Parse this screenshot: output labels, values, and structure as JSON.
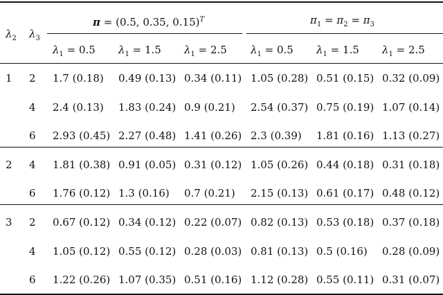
{
  "header": {
    "lambda2": "λ2",
    "lambda3": "λ3",
    "group_a": "π = (0.5, 0.35, 0.15)T",
    "group_b": "π1 = π2 = π3",
    "sub_cols": [
      "λ1 = 0.5",
      "λ1 = 1.5",
      "λ1 = 2.5",
      "λ1 = 0.5",
      "λ1 = 1.5",
      "λ1 = 2.5"
    ]
  },
  "blocks": [
    {
      "lambda2": "1",
      "rows": [
        {
          "lambda3": "2",
          "cells": [
            "1.7 (0.18)",
            "0.49 (0.13)",
            "0.34 (0.11)",
            "1.05 (0.28)",
            "0.51 (0.15)",
            "0.32 (0.09)"
          ]
        },
        {
          "lambda3": "4",
          "cells": [
            "2.4 (0.13)",
            "1.83 (0.24)",
            "0.9 (0.21)",
            "2.54 (0.37)",
            "0.75 (0.19)",
            "1.07 (0.14)"
          ]
        },
        {
          "lambda3": "6",
          "cells": [
            "2.93 (0.45)",
            "2.27 (0.48)",
            "1.41 (0.26)",
            "2.3 (0.39)",
            "1.81 (0.16)",
            "1.13 (0.27)"
          ]
        }
      ]
    },
    {
      "lambda2": "2",
      "rows": [
        {
          "lambda3": "4",
          "cells": [
            "1.81 (0.38)",
            "0.91 (0.05)",
            "0.31 (0.12)",
            "1.05 (0.26)",
            "0.44 (0.18)",
            "0.31 (0.18)"
          ]
        },
        {
          "lambda3": "6",
          "cells": [
            "1.76 (0.12)",
            "1.3 (0.16)",
            "0.7 (0.21)",
            "2.15 (0.13)",
            "0.61 (0.17)",
            "0.48 (0.12)"
          ]
        }
      ]
    },
    {
      "lambda2": "3",
      "rows": [
        {
          "lambda3": "2",
          "cells": [
            "0.67 (0.12)",
            "0.34 (0.12)",
            "0.22 (0.07)",
            "0.82 (0.13)",
            "0.53 (0.18)",
            "0.37 (0.18)"
          ]
        },
        {
          "lambda3": "4",
          "cells": [
            "1.05 (0.12)",
            "0.55 (0.12)",
            "0.28 (0.03)",
            "0.81 (0.13)",
            "0.5 (0.16)",
            "0.28 (0.09)"
          ]
        },
        {
          "lambda3": "6",
          "cells": [
            "1.22 (0.26)",
            "1.07 (0.35)",
            "0.51 (0.16)",
            "1.12 (0.28)",
            "0.55 (0.11)",
            "0.31 (0.07)"
          ]
        }
      ]
    }
  ]
}
